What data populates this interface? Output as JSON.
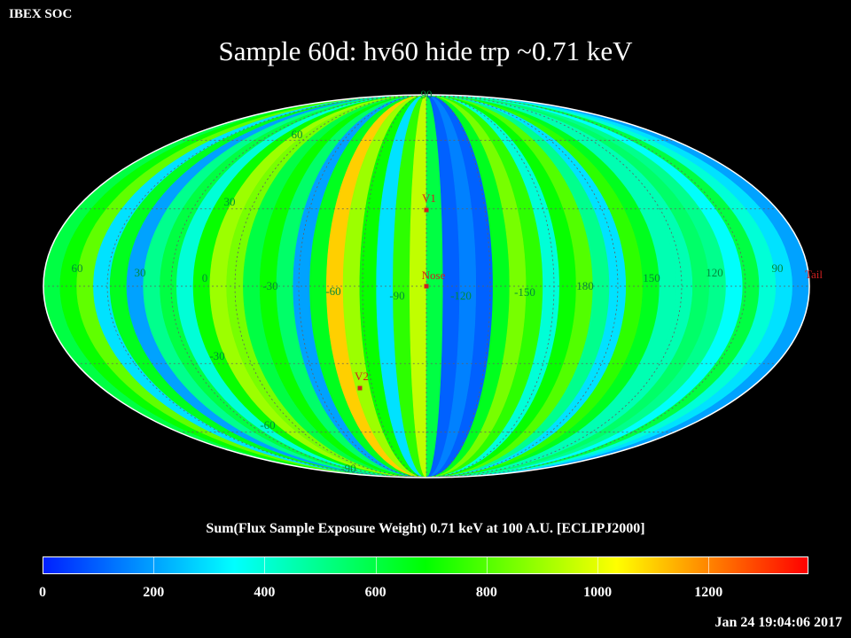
{
  "header": {
    "label": "IBEX SOC"
  },
  "title": "Sample 60d: hv60 hide trp ~0.71 keV",
  "map": {
    "projection": "mollweide",
    "lat_labels": [
      "90",
      "60",
      "30",
      "-30",
      "-60",
      "-90"
    ],
    "lon_labels": [
      "60",
      "30",
      "0",
      "-30",
      "-60",
      "-90",
      "-120",
      "-150",
      "180",
      "150",
      "120",
      "90"
    ],
    "markers": [
      {
        "name": "V1",
        "color": "#d02020"
      },
      {
        "name": "Nose",
        "color": "#d02020"
      },
      {
        "name": "V2",
        "color": "#d02020"
      },
      {
        "name": "Tail",
        "color": "#d02020"
      }
    ],
    "band_values": [
      600,
      700,
      820,
      300,
      650,
      200,
      500,
      600,
      400,
      700,
      900,
      850,
      600,
      700,
      550,
      200,
      650,
      1100,
      900,
      700,
      300,
      750,
      950,
      600,
      100,
      150,
      100,
      650,
      850,
      750,
      400,
      700,
      800,
      500,
      300,
      750,
      650,
      450,
      450,
      550,
      500,
      350,
      600,
      400,
      300,
      200
    ]
  },
  "colorbar": {
    "caption": "Sum(Flux Sample Exposure Weight)  0.71 keV at 100 A.U. [ECLIPJ2000]",
    "min": 0,
    "max": 1380,
    "ticks": [
      "0",
      "200",
      "400",
      "600",
      "800",
      "1000",
      "1200"
    ],
    "colors": [
      "#0020ff",
      "#0090ff",
      "#00ffff",
      "#00ff80",
      "#00ff00",
      "#80ff00",
      "#ffff00",
      "#ff8000",
      "#ff0000"
    ]
  },
  "timestamp": "Jan 24 19:04:06 2017"
}
